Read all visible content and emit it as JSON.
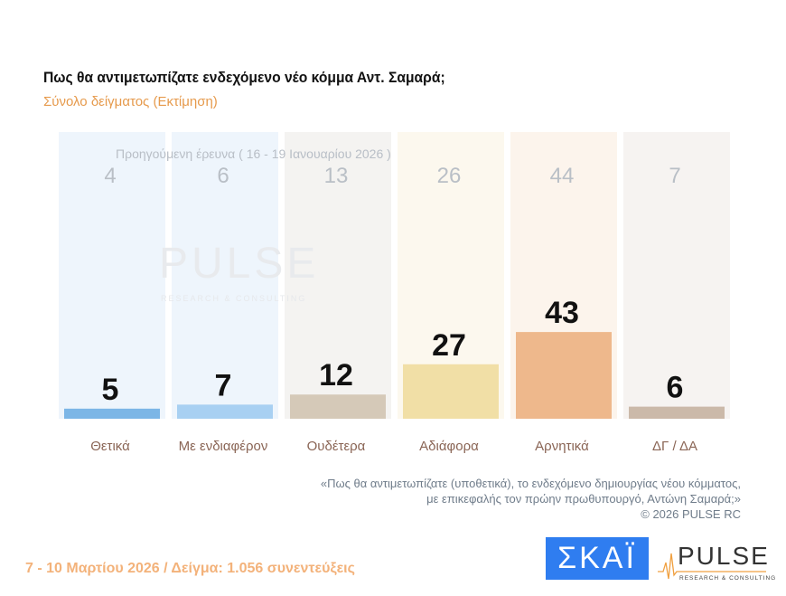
{
  "title": "Πως θα αντιμετωπίζατε ενδεχόμενο νέο κόμμα Αντ. Σαμαρά;",
  "subtitle": "Σύνολο δείγματος  (Εκτίμηση)",
  "chart_data": {
    "type": "bar",
    "categories": [
      "Θετικά",
      "Με ενδιαφέρον",
      "Ουδέτερα",
      "Αδιάφορα",
      "Αρνητικά",
      "ΔΓ / ΔΑ"
    ],
    "series": [
      {
        "name": "Προηγούμενη έρευνα ( 16 - 19 Ιανουαρίου 2026 )",
        "values": [
          4,
          6,
          13,
          26,
          44,
          7
        ]
      },
      {
        "values": [
          5,
          7,
          12,
          27,
          43,
          6
        ]
      }
    ],
    "colors": [
      "#7cb6e6",
      "#a8d0f2",
      "#d5c9b8",
      "#f1dfa6",
      "#eeb88c",
      "#cbb9a9"
    ],
    "column_bg": [
      "#eef5fc",
      "#eef5fc",
      "#f4f3f1",
      "#fcf8ee",
      "#fcf4ec",
      "#f6f3f1"
    ],
    "ylim": [
      0,
      50
    ]
  },
  "prev_label": "Προηγούμενη έρευνα ( 16 - 19 Ιανουαρίου 2026 )",
  "note": [
    "«Πως θα αντιμετωπίζατε (υποθετικά), το ενδεχόμενο δημιουργίας νέου κόμματος,",
    "με επικεφαλής τον πρώην πρωθυπουργό, Αντώνη Σαμαρά;»",
    "©  2026  PULSE RC"
  ],
  "footer": "7 - 10  Μαρτίου 2026  /  Δείγμα:  1.056 συνεντεύξεις",
  "logos": {
    "skai": "ΣΚΑΪ",
    "pulse": "PULSE",
    "pulse_sub": "RESEARCH & CONSULTING"
  }
}
